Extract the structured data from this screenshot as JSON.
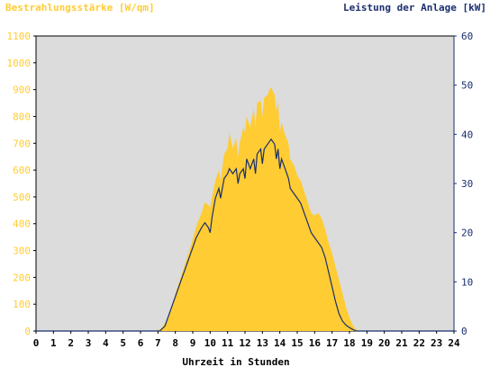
{
  "chart_data": {
    "type": "area",
    "left_axis_title": "Bestrahlungsstärke [W/qm]",
    "right_axis_title": "Leistung der Anlage [kW]",
    "xlabel": "Uhrzeit in Stunden",
    "xlim": [
      0,
      24
    ],
    "ylim_left": [
      0,
      1100
    ],
    "ylim_right": [
      0,
      60
    ],
    "x_ticks": [
      "0",
      "1",
      "2",
      "3",
      "4",
      "5",
      "6",
      "7",
      "8",
      "9",
      "10",
      "11",
      "12",
      "13",
      "14",
      "15",
      "16",
      "17",
      "18",
      "19",
      "20",
      "21",
      "22",
      "23",
      "24"
    ],
    "y_ticks_left": [
      "0",
      "100",
      "200",
      "300",
      "400",
      "500",
      "600",
      "700",
      "800",
      "900",
      "1000",
      "1100"
    ],
    "y_ticks_right": [
      "0",
      "10",
      "20",
      "30",
      "40",
      "50",
      "60"
    ],
    "colors": {
      "irradiance": "#ffcc33",
      "power": "#1a2e6e",
      "left_axis": "#ffcc33",
      "right_axis": "#1a2e6e",
      "plot_background": "#dcdcdc"
    },
    "grid": false,
    "series": [
      {
        "name": "Bestrahlungsstärke [W/qm]",
        "axis": "left",
        "points": [
          [
            0,
            0
          ],
          [
            6.9,
            0
          ],
          [
            7.2,
            10
          ],
          [
            7.5,
            40
          ],
          [
            7.8,
            90
          ],
          [
            8.0,
            140
          ],
          [
            8.3,
            200
          ],
          [
            8.6,
            260
          ],
          [
            8.9,
            320
          ],
          [
            9.2,
            390
          ],
          [
            9.5,
            440
          ],
          [
            9.7,
            480
          ],
          [
            9.9,
            470
          ],
          [
            10.0,
            460
          ],
          [
            10.1,
            500
          ],
          [
            10.3,
            560
          ],
          [
            10.5,
            600
          ],
          [
            10.6,
            560
          ],
          [
            10.8,
            660
          ],
          [
            11.0,
            680
          ],
          [
            11.1,
            740
          ],
          [
            11.3,
            680
          ],
          [
            11.5,
            720
          ],
          [
            11.6,
            650
          ],
          [
            11.7,
            700
          ],
          [
            11.9,
            760
          ],
          [
            12.0,
            740
          ],
          [
            12.1,
            800
          ],
          [
            12.3,
            760
          ],
          [
            12.5,
            830
          ],
          [
            12.6,
            760
          ],
          [
            12.7,
            850
          ],
          [
            12.9,
            860
          ],
          [
            13.0,
            800
          ],
          [
            13.1,
            870
          ],
          [
            13.3,
            880
          ],
          [
            13.4,
            900
          ],
          [
            13.5,
            910
          ],
          [
            13.7,
            880
          ],
          [
            13.8,
            820
          ],
          [
            13.9,
            860
          ],
          [
            14.0,
            740
          ],
          [
            14.1,
            780
          ],
          [
            14.3,
            730
          ],
          [
            14.5,
            700
          ],
          [
            14.6,
            640
          ],
          [
            14.8,
            620
          ],
          [
            15.0,
            580
          ],
          [
            15.2,
            560
          ],
          [
            15.4,
            520
          ],
          [
            15.6,
            480
          ],
          [
            15.8,
            440
          ],
          [
            16.0,
            430
          ],
          [
            16.2,
            440
          ],
          [
            16.4,
            420
          ],
          [
            16.6,
            380
          ],
          [
            16.8,
            330
          ],
          [
            17.0,
            290
          ],
          [
            17.2,
            240
          ],
          [
            17.4,
            190
          ],
          [
            17.6,
            140
          ],
          [
            17.8,
            90
          ],
          [
            18.0,
            50
          ],
          [
            18.2,
            20
          ],
          [
            18.4,
            5
          ],
          [
            18.6,
            0
          ],
          [
            24,
            0
          ]
        ]
      },
      {
        "name": "Leistung der Anlage [kW]",
        "axis": "right",
        "points": [
          [
            0,
            0
          ],
          [
            7.1,
            0
          ],
          [
            7.4,
            1
          ],
          [
            7.7,
            4
          ],
          [
            8.0,
            7
          ],
          [
            8.3,
            10
          ],
          [
            8.6,
            13
          ],
          [
            8.9,
            16
          ],
          [
            9.2,
            19
          ],
          [
            9.5,
            21
          ],
          [
            9.7,
            22
          ],
          [
            9.9,
            21
          ],
          [
            10.0,
            20
          ],
          [
            10.1,
            23
          ],
          [
            10.3,
            27
          ],
          [
            10.5,
            29
          ],
          [
            10.6,
            27
          ],
          [
            10.8,
            31
          ],
          [
            11.0,
            32
          ],
          [
            11.1,
            33
          ],
          [
            11.3,
            32
          ],
          [
            11.5,
            33
          ],
          [
            11.6,
            30
          ],
          [
            11.7,
            32
          ],
          [
            11.9,
            33
          ],
          [
            12.0,
            31
          ],
          [
            12.1,
            35
          ],
          [
            12.3,
            33
          ],
          [
            12.5,
            35
          ],
          [
            12.6,
            32
          ],
          [
            12.7,
            36
          ],
          [
            12.9,
            37
          ],
          [
            13.0,
            34
          ],
          [
            13.1,
            37
          ],
          [
            13.3,
            38
          ],
          [
            13.5,
            39
          ],
          [
            13.7,
            38
          ],
          [
            13.8,
            35
          ],
          [
            13.9,
            37
          ],
          [
            14.0,
            33
          ],
          [
            14.1,
            35
          ],
          [
            14.3,
            33
          ],
          [
            14.5,
            31
          ],
          [
            14.6,
            29
          ],
          [
            14.8,
            28
          ],
          [
            15.0,
            27
          ],
          [
            15.2,
            26
          ],
          [
            15.4,
            24
          ],
          [
            15.6,
            22
          ],
          [
            15.8,
            20
          ],
          [
            16.0,
            19
          ],
          [
            16.2,
            18
          ],
          [
            16.4,
            17
          ],
          [
            16.6,
            15
          ],
          [
            16.8,
            12
          ],
          [
            17.0,
            9
          ],
          [
            17.2,
            6
          ],
          [
            17.4,
            3.5
          ],
          [
            17.6,
            2
          ],
          [
            17.8,
            1.2
          ],
          [
            18.0,
            0.7
          ],
          [
            18.2,
            0.3
          ],
          [
            18.4,
            0
          ],
          [
            24,
            0
          ]
        ]
      }
    ]
  }
}
